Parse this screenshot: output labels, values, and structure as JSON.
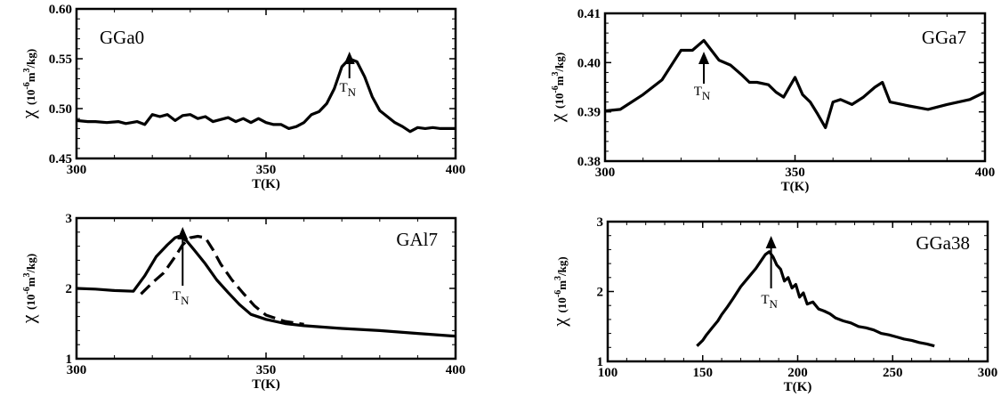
{
  "chart_data": [
    {
      "type": "line",
      "label": "GGa0",
      "xlabel": "T(K)",
      "ylabel": "χ (10-6m3/kg)",
      "xlim": [
        300,
        400
      ],
      "ylim": [
        0.45,
        0.6
      ],
      "xticks": [
        "300",
        "350",
        "400"
      ],
      "yticks": [
        "0.45",
        "0.50",
        "0.55",
        "0.60"
      ],
      "series": [
        {
          "style": "solid",
          "x": [
            300,
            303,
            305,
            308,
            311,
            313,
            316,
            318,
            320,
            322,
            324,
            326,
            328,
            330,
            332,
            334,
            336,
            338,
            340,
            342,
            344,
            346,
            348,
            350,
            352,
            354,
            356,
            358,
            360,
            362,
            364,
            366,
            368,
            370,
            372,
            374,
            376,
            378,
            380,
            382,
            384,
            386,
            388,
            390,
            392,
            394,
            396,
            398,
            400
          ],
          "values": [
            0.488,
            0.487,
            0.487,
            0.486,
            0.487,
            0.485,
            0.487,
            0.484,
            0.494,
            0.492,
            0.494,
            0.488,
            0.493,
            0.494,
            0.49,
            0.492,
            0.487,
            0.489,
            0.491,
            0.487,
            0.49,
            0.486,
            0.49,
            0.486,
            0.484,
            0.484,
            0.48,
            0.482,
            0.486,
            0.494,
            0.497,
            0.505,
            0.52,
            0.542,
            0.55,
            0.547,
            0.532,
            0.512,
            0.498,
            0.492,
            0.486,
            0.482,
            0.477,
            0.481,
            0.48,
            0.481,
            0.48,
            0.48,
            0.48
          ]
        }
      ],
      "annotations": [
        {
          "text": "T",
          "sub": "N",
          "x": 372
        }
      ]
    },
    {
      "type": "line",
      "label": "GGa7",
      "xlabel": "T(K)",
      "ylabel": "χ (10-6m3/kg)",
      "xlim": [
        300,
        400
      ],
      "ylim": [
        0.38,
        0.41
      ],
      "xticks": [
        "300",
        "350",
        "400"
      ],
      "yticks": [
        "0.38",
        "0.39",
        "0.40",
        "0.41"
      ],
      "series": [
        {
          "style": "solid",
          "x": [
            300,
            304,
            306,
            310,
            315,
            320,
            323,
            326,
            330,
            333,
            336,
            338,
            340,
            343,
            345,
            347,
            350,
            352,
            354,
            356,
            358,
            360,
            362,
            365,
            368,
            371,
            373,
            375,
            380,
            385,
            390,
            396,
            400
          ],
          "values": [
            0.3902,
            0.3905,
            0.3915,
            0.3935,
            0.3965,
            0.4025,
            0.4025,
            0.4045,
            0.4005,
            0.3995,
            0.3975,
            0.396,
            0.396,
            0.3955,
            0.394,
            0.393,
            0.397,
            0.3935,
            0.392,
            0.3895,
            0.3868,
            0.392,
            0.3925,
            0.3915,
            0.393,
            0.395,
            0.396,
            0.392,
            0.3912,
            0.3905,
            0.3915,
            0.3925,
            0.394
          ]
        }
      ],
      "annotations": [
        {
          "text": "T",
          "sub": "N",
          "x": 326
        }
      ]
    },
    {
      "type": "line",
      "label": "GAl7",
      "xlabel": "T(K)",
      "ylabel": "χ (10-6m3/kg)",
      "xlim": [
        300,
        400
      ],
      "ylim": [
        1,
        3
      ],
      "xticks": [
        "300",
        "350",
        "400"
      ],
      "yticks": [
        "1",
        "2",
        "3"
      ],
      "series": [
        {
          "style": "solid",
          "x": [
            300,
            305,
            310,
            315,
            318,
            321,
            324,
            326,
            327,
            329,
            331,
            334,
            337,
            340,
            343,
            346,
            350,
            355,
            360,
            370,
            380,
            390,
            400
          ],
          "values": [
            2.0,
            1.99,
            1.97,
            1.96,
            2.18,
            2.45,
            2.62,
            2.72,
            2.74,
            2.68,
            2.55,
            2.35,
            2.12,
            1.94,
            1.77,
            1.63,
            1.56,
            1.5,
            1.47,
            1.43,
            1.4,
            1.36,
            1.32
          ]
        },
        {
          "style": "dashed",
          "x": [
            317,
            320,
            323,
            326,
            328,
            330,
            332,
            334,
            336,
            338,
            341,
            344,
            347,
            350,
            355,
            360
          ],
          "values": [
            1.92,
            2.08,
            2.22,
            2.45,
            2.62,
            2.72,
            2.74,
            2.72,
            2.55,
            2.35,
            2.12,
            1.93,
            1.75,
            1.62,
            1.53,
            1.49
          ]
        }
      ],
      "annotations": [
        {
          "text": "T",
          "sub": "N",
          "x": 328
        }
      ]
    },
    {
      "type": "line",
      "label": "GGa38",
      "xlabel": "T(K)",
      "ylabel": "χ (10-6m3/kg)",
      "xlim": [
        100,
        300
      ],
      "ylim": [
        1,
        3
      ],
      "xticks": [
        "100",
        "150",
        "200",
        "250",
        "300"
      ],
      "yticks": [
        "1",
        "2",
        "3"
      ],
      "series": [
        {
          "style": "solid",
          "x": [
            147,
            150,
            152,
            155,
            158,
            160,
            163,
            166,
            170,
            174,
            178,
            181,
            183,
            185,
            187,
            189,
            191,
            193,
            195,
            197,
            199,
            201,
            203,
            205,
            208,
            211,
            214,
            217,
            220,
            224,
            228,
            232,
            236,
            240,
            244,
            248,
            252,
            256,
            260,
            264,
            268,
            272
          ],
          "values": [
            1.22,
            1.3,
            1.38,
            1.48,
            1.58,
            1.67,
            1.78,
            1.9,
            2.07,
            2.2,
            2.33,
            2.45,
            2.53,
            2.57,
            2.5,
            2.38,
            2.32,
            2.15,
            2.2,
            2.05,
            2.1,
            1.92,
            1.98,
            1.82,
            1.85,
            1.75,
            1.72,
            1.68,
            1.62,
            1.58,
            1.55,
            1.5,
            1.48,
            1.45,
            1.4,
            1.38,
            1.35,
            1.32,
            1.3,
            1.27,
            1.25,
            1.22
          ]
        }
      ],
      "annotations": [
        {
          "text": "T",
          "sub": "N",
          "x": 186
        }
      ]
    }
  ]
}
